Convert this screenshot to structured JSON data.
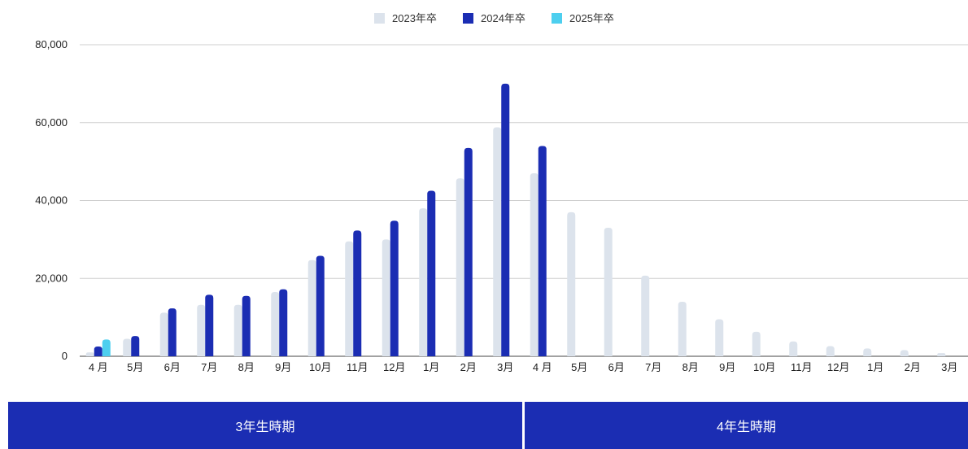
{
  "chart_data": {
    "type": "bar",
    "categories": [
      "4 月",
      "5月",
      "6月",
      "7月",
      "8月",
      "9月",
      "10月",
      "11月",
      "12月",
      "1月",
      "2月",
      "3月",
      "4 月",
      "5月",
      "6月",
      "7月",
      "8月",
      "9月",
      "10月",
      "11月",
      "12月",
      "1月",
      "2月",
      "3月"
    ],
    "series": [
      {
        "name": "2023年卒",
        "color": "#dce3ec",
        "values": [
          1000,
          4500,
          11200,
          13200,
          13200,
          16500,
          24700,
          29500,
          30000,
          38000,
          45700,
          58800,
          47000,
          37000,
          33000,
          20700,
          14000,
          9500,
          6300,
          3800,
          2600,
          2000,
          1600,
          800
        ]
      },
      {
        "name": "2024年卒",
        "color": "#1b2db3",
        "values": [
          2500,
          5200,
          12300,
          15800,
          15500,
          17200,
          25800,
          32300,
          34800,
          42500,
          53500,
          70000,
          54000,
          null,
          null,
          null,
          null,
          null,
          null,
          null,
          null,
          null,
          null,
          null
        ]
      },
      {
        "name": "2025年卒",
        "color": "#4dcfef",
        "values": [
          4300,
          null,
          null,
          null,
          null,
          null,
          null,
          null,
          null,
          null,
          null,
          null,
          null,
          null,
          null,
          null,
          null,
          null,
          null,
          null,
          null,
          null,
          null,
          null
        ]
      }
    ],
    "yticks": [
      "0",
      "20,000",
      "40,000",
      "60,000",
      "80,000"
    ],
    "ylim": [
      0,
      80000
    ],
    "grid": true,
    "legend_position": "top-center"
  },
  "periods": {
    "third_year": {
      "label": "3年生時期",
      "color": "#1b2db3"
    },
    "fourth_year": {
      "label": "4年生時期",
      "color": "#1b2db3"
    }
  }
}
